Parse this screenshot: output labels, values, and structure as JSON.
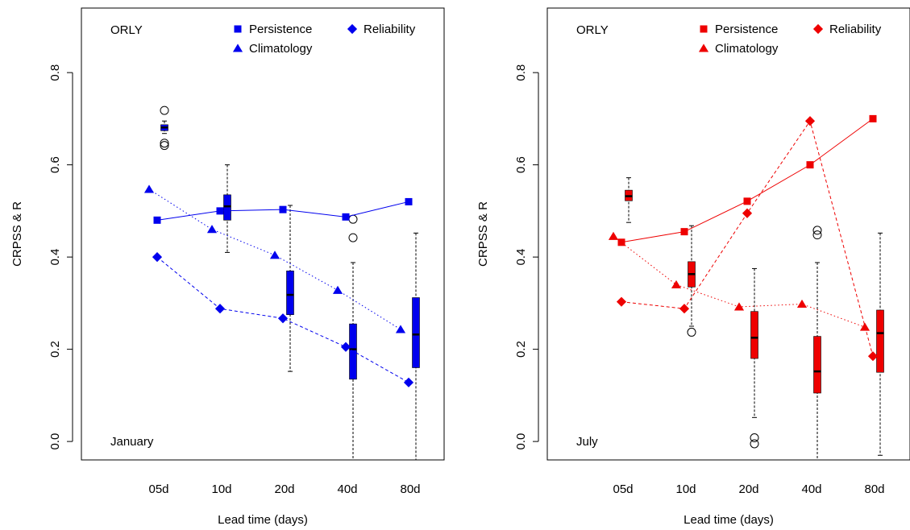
{
  "chart_data": [
    {
      "type": "box+line",
      "panel_label": "ORLY",
      "month_label": "January",
      "xlabel": "Lead time (days)",
      "ylabel": "CRPSS & R",
      "categories": [
        "05d",
        "10d",
        "20d",
        "40d",
        "80d"
      ],
      "yticks": [
        "0.0",
        "0.2",
        "0.4",
        "0.6",
        "0.8"
      ],
      "ylim": [
        -0.04,
        0.94
      ],
      "color": "#0000ee",
      "legend": {
        "placement": "top-right",
        "entries": [
          {
            "label": "Persistence",
            "marker": "square"
          },
          {
            "label": "Reliability",
            "marker": "diamond"
          },
          {
            "label": "Climatology",
            "marker": "triangle"
          }
        ]
      },
      "series": [
        {
          "name": "Persistence",
          "marker": "square",
          "line": "solid",
          "values": [
            0.48,
            0.5,
            0.503,
            0.487,
            0.52
          ]
        },
        {
          "name": "Climatology",
          "marker": "triangle",
          "line": "dotted",
          "values": [
            0.547,
            0.46,
            0.404,
            0.328,
            0.243
          ]
        },
        {
          "name": "Reliability",
          "marker": "diamond",
          "line": "dashed",
          "values": [
            0.4,
            0.288,
            0.267,
            0.205,
            0.128
          ]
        }
      ],
      "boxes": [
        {
          "category": "05d",
          "min": 0.668,
          "q1": 0.674,
          "median": 0.681,
          "q3": 0.687,
          "max": 0.695,
          "outliers": [
            0.718,
            0.647,
            0.642
          ]
        },
        {
          "category": "10d",
          "min": 0.41,
          "q1": 0.48,
          "median": 0.51,
          "q3": 0.535,
          "max": 0.6,
          "outliers": []
        },
        {
          "category": "20d",
          "min": 0.152,
          "q1": 0.275,
          "median": 0.318,
          "q3": 0.37,
          "max": 0.512,
          "outliers": []
        },
        {
          "category": "40d",
          "min": -0.04,
          "q1": 0.135,
          "median": 0.2,
          "q3": 0.255,
          "max": 0.388,
          "outliers": [
            0.482,
            0.442
          ]
        },
        {
          "category": "80d",
          "min": -0.04,
          "q1": 0.16,
          "median": 0.232,
          "q3": 0.312,
          "max": 0.452,
          "outliers": []
        }
      ]
    },
    {
      "type": "box+line",
      "panel_label": "ORLY",
      "month_label": "July",
      "xlabel": "Lead time (days)",
      "ylabel": "CRPSS & R",
      "categories": [
        "05d",
        "10d",
        "20d",
        "40d",
        "80d"
      ],
      "yticks": [
        "0.0",
        "0.2",
        "0.4",
        "0.6",
        "0.8"
      ],
      "ylim": [
        -0.04,
        0.94
      ],
      "color": "#ee0000",
      "legend": {
        "placement": "top-right",
        "entries": [
          {
            "label": "Persistence",
            "marker": "square"
          },
          {
            "label": "Reliability",
            "marker": "diamond"
          },
          {
            "label": "Climatology",
            "marker": "triangle"
          }
        ]
      },
      "series": [
        {
          "name": "Persistence",
          "marker": "square",
          "line": "solid",
          "values": [
            0.432,
            0.455,
            0.521,
            0.6,
            0.7
          ]
        },
        {
          "name": "Climatology",
          "marker": "triangle",
          "line": "dotted",
          "values": [
            0.445,
            0.34,
            0.292,
            0.298,
            0.248
          ]
        },
        {
          "name": "Reliability",
          "marker": "diamond",
          "line": "dashed",
          "values": [
            0.303,
            0.288,
            0.495,
            0.695,
            0.185
          ]
        }
      ],
      "boxes": [
        {
          "category": "05d",
          "min": 0.475,
          "q1": 0.522,
          "median": 0.532,
          "q3": 0.545,
          "max": 0.572,
          "outliers": []
        },
        {
          "category": "10d",
          "min": 0.25,
          "q1": 0.335,
          "median": 0.363,
          "q3": 0.39,
          "max": 0.468,
          "outliers": [
            0.237
          ]
        },
        {
          "category": "20d",
          "min": 0.052,
          "q1": 0.18,
          "median": 0.225,
          "q3": 0.282,
          "max": 0.375,
          "outliers": [
            0.008,
            -0.005
          ]
        },
        {
          "category": "40d",
          "min": -0.04,
          "q1": 0.105,
          "median": 0.152,
          "q3": 0.228,
          "max": 0.388,
          "outliers": [
            0.458,
            0.448
          ]
        },
        {
          "category": "80d",
          "min": -0.03,
          "q1": 0.15,
          "median": 0.235,
          "q3": 0.285,
          "max": 0.452,
          "outliers": []
        }
      ]
    }
  ]
}
